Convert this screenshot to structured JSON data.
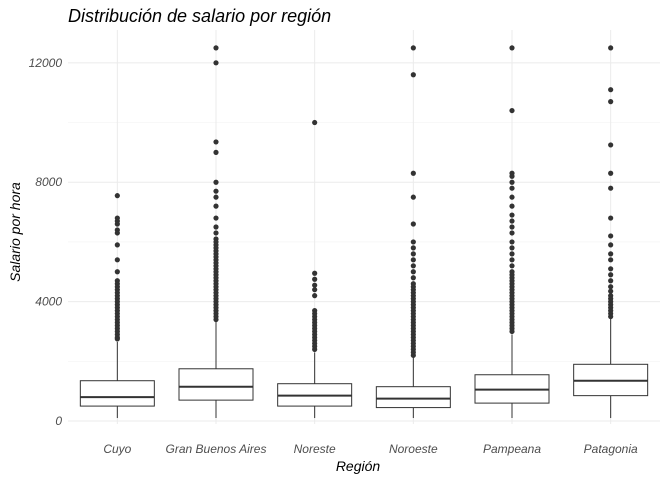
{
  "chart_data": {
    "type": "boxplot",
    "title": "Distribución de salario por región",
    "xlabel": "Región",
    "ylabel": "Salario por hora",
    "ylim": [
      -100,
      13100
    ],
    "yticks": [
      0,
      4000,
      8000,
      12000
    ],
    "grid": true,
    "categories": [
      "Cuyo",
      "Gran Buenos Aires",
      "Noreste",
      "Noroeste",
      "Pampeana",
      "Patagonia"
    ],
    "boxes": [
      {
        "category": "Cuyo",
        "whisker_low": 100,
        "q1": 500,
        "median": 800,
        "q3": 1350,
        "whisker_high": 2650,
        "outliers": [
          7550,
          6800,
          6700,
          6600,
          6400,
          6300,
          5900,
          5400,
          5000,
          4700,
          4600,
          4500,
          4400,
          4300,
          4200,
          4100,
          4000,
          3900,
          3800,
          3700,
          3600,
          3500,
          3400,
          3300,
          3200,
          3100,
          3000,
          2900,
          2800,
          2750
        ]
      },
      {
        "category": "Gran Buenos Aires",
        "whisker_low": 100,
        "q1": 700,
        "median": 1150,
        "q3": 1750,
        "whisker_high": 3350,
        "outliers": [
          12500,
          12000,
          9350,
          9000,
          8000,
          7700,
          7500,
          7200,
          6800,
          6500,
          6300,
          6100,
          6000,
          5900,
          5800,
          5700,
          5600,
          5500,
          5400,
          5300,
          5200,
          5100,
          5000,
          4900,
          4800,
          4700,
          4600,
          4500,
          4400,
          4300,
          4200,
          4100,
          4000,
          3900,
          3800,
          3700,
          3600,
          3500,
          3400
        ]
      },
      {
        "category": "Noreste",
        "whisker_low": 100,
        "q1": 500,
        "median": 850,
        "q3": 1250,
        "whisker_high": 2300,
        "outliers": [
          10000,
          4950,
          4750,
          4550,
          4400,
          4200,
          3700,
          3600,
          3500,
          3400,
          3300,
          3200,
          3100,
          3000,
          2900,
          2800,
          2700,
          2600,
          2500,
          2400
        ]
      },
      {
        "category": "Noroeste",
        "whisker_low": 100,
        "q1": 450,
        "median": 750,
        "q3": 1150,
        "whisker_high": 2150,
        "outliers": [
          12500,
          11600,
          8300,
          7500,
          6600,
          6000,
          5800,
          5600,
          5400,
          5200,
          5000,
          4800,
          4600,
          4500,
          4400,
          4300,
          4200,
          4100,
          4000,
          3900,
          3800,
          3700,
          3600,
          3500,
          3400,
          3300,
          3200,
          3100,
          3000,
          2900,
          2800,
          2700,
          2600,
          2500,
          2400,
          2300,
          2200
        ]
      },
      {
        "category": "Pampeana",
        "whisker_low": 100,
        "q1": 600,
        "median": 1050,
        "q3": 1550,
        "whisker_high": 2900,
        "outliers": [
          12500,
          10400,
          8300,
          8200,
          8000,
          7800,
          7500,
          7200,
          6900,
          6700,
          6500,
          6300,
          6000,
          5800,
          5600,
          5400,
          5200,
          5000,
          4900,
          4800,
          4700,
          4600,
          4500,
          4400,
          4300,
          4200,
          4100,
          4000,
          3900,
          3800,
          3700,
          3600,
          3500,
          3400,
          3300,
          3200,
          3100,
          3000
        ]
      },
      {
        "category": "Patagonia",
        "whisker_low": 100,
        "q1": 850,
        "median": 1350,
        "q3": 1900,
        "whisker_high": 3450,
        "outliers": [
          12500,
          11100,
          10700,
          9250,
          8300,
          7800,
          6800,
          6200,
          5900,
          5600,
          5400,
          5100,
          4900,
          4700,
          4500,
          4350,
          4200,
          4100,
          4000,
          3900,
          3800,
          3700,
          3600,
          3500
        ]
      }
    ]
  }
}
